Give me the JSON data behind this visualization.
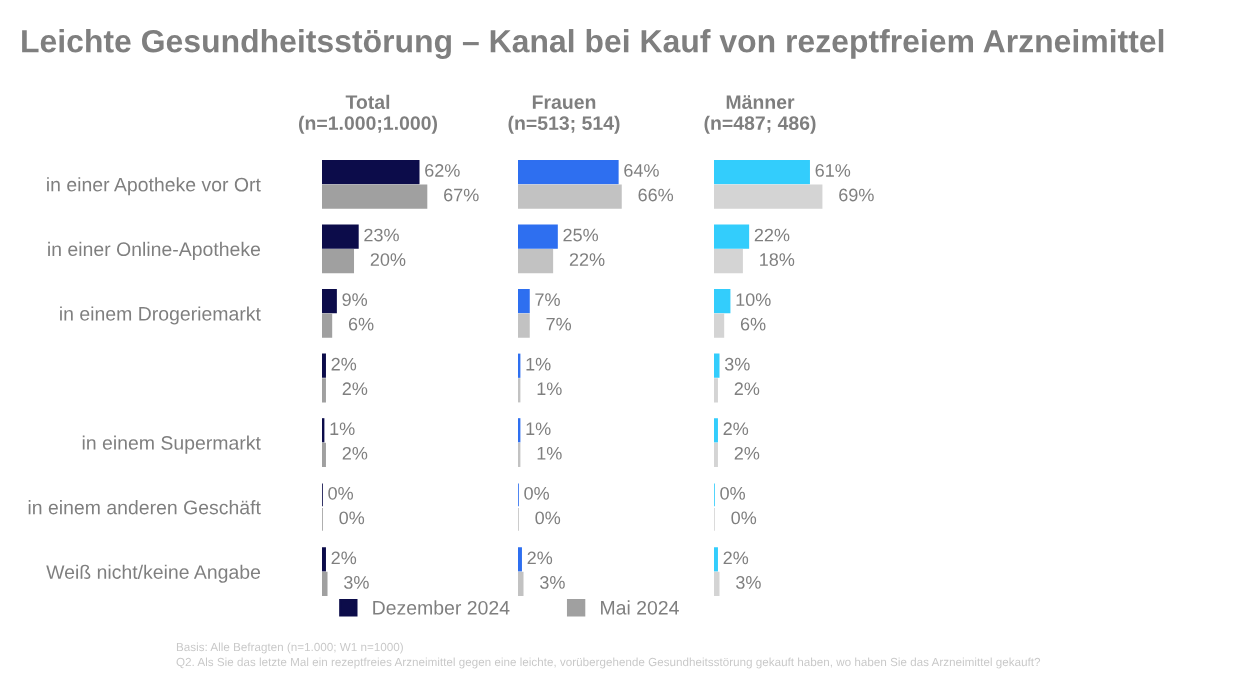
{
  "chart_data": [
    {
      "type": "other",
      "title": "Leichte Gesundheitsstörung – Kanal bei Kauf von rezeptfreiem Arzneimittel",
      "annotations": [
        "Basis: Alle Befragten (n=1.000; W1 n=1000)",
        "Q2. Als Sie das letzte Mal ein rezeptfreies Arzneimittel gegen eine leichte, vorübergehende Gesundheitsstörung gekauft haben, wo haben Sie das Arzneimittel gekauft?"
      ]
    },
    {
      "type": "bar",
      "orientation": "horizontal",
      "title": "Total\n(n=1.000;1.000)",
      "categories": [
        "in einer Apotheke vor Ort",
        "in einer Online-Apotheke",
        "in einem Drogeriemarkt",
        null,
        "in einem Supermarkt",
        "in einem anderen Geschäft",
        "Weiß nicht/keine Angabe"
      ],
      "legend": "bottom",
      "tick_labels": "y",
      "grid": false,
      "series": [
        {
          "name": "Dezember 2024",
          "color": "#0c0c4a",
          "values": [
            62,
            23,
            9,
            2,
            1,
            0,
            2
          ],
          "value_labels": [
            "62%",
            "23%",
            "9%",
            "2%",
            "1%",
            "0%",
            "2%"
          ]
        },
        {
          "name": "Mai 2024",
          "color": "#a0a0a0",
          "values": [
            67,
            20,
            6,
            2,
            2,
            0,
            3
          ],
          "value_labels": [
            "67%",
            "20%",
            "6%",
            "2%",
            "2%",
            "0%",
            "3%"
          ]
        }
      ]
    },
    {
      "type": "bar",
      "orientation": "horizontal",
      "title": "Frauen\n(n=513; 514)",
      "tick_labels": false,
      "grid": false,
      "series": [
        {
          "color": "#2e6ff0",
          "values": [
            64,
            25,
            7,
            1,
            1,
            0,
            2
          ],
          "value_labels": [
            "64%",
            "25%",
            "7%",
            "1%",
            "1%",
            "0%",
            "2%"
          ]
        },
        {
          "color": "#c2c2c2",
          "values": [
            66,
            22,
            7,
            1,
            1,
            0,
            3
          ],
          "value_labels": [
            "66%",
            "22%",
            "7%",
            "1%",
            "1%",
            "0%",
            "3%"
          ]
        }
      ]
    },
    {
      "type": "bar",
      "orientation": "horizontal",
      "title": "Männer\n(n=487; 486)",
      "tick_labels": false,
      "grid": false,
      "series": [
        {
          "color": "#33cdfc",
          "values": [
            61,
            22,
            10,
            3,
            2,
            0,
            2
          ],
          "value_labels": [
            "61%",
            "22%",
            "10%",
            "3%",
            "2%",
            "0%",
            "2%"
          ]
        },
        {
          "color": "#d4d4d4",
          "values": [
            69,
            18,
            6,
            2,
            2,
            0,
            3
          ],
          "value_labels": [
            "69%",
            "18%",
            "6%",
            "2%",
            "2%",
            "0%",
            "3%"
          ]
        }
      ]
    }
  ]
}
